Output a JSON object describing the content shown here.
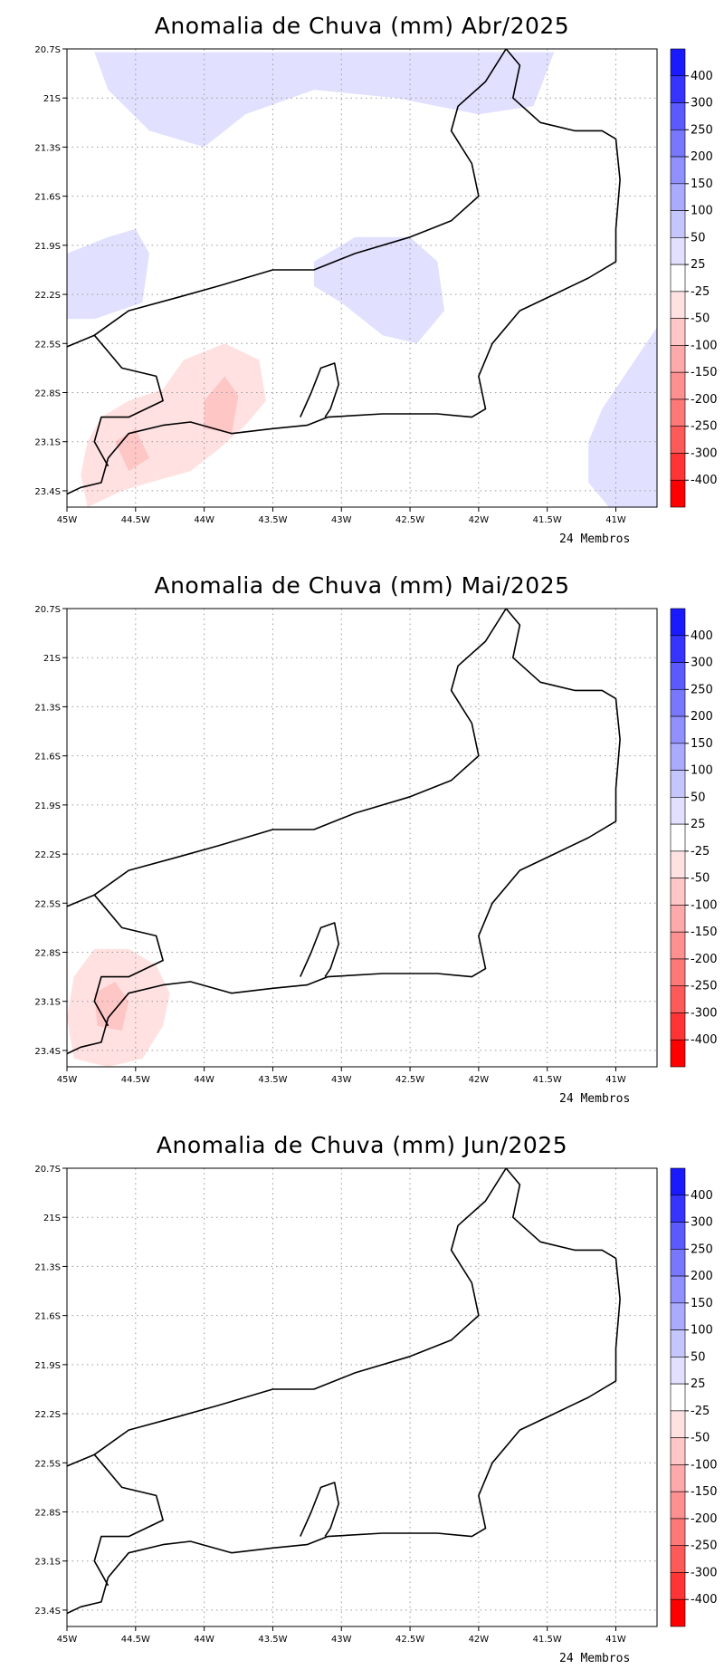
{
  "panels": [
    {
      "title": "Anomalia de Chuva (mm) Abr/2025",
      "footnote": "24 Membros",
      "anomalies": [
        {
          "shape": [
            [
              -44.8,
              -20.72
            ],
            [
              -43.6,
              -20.72
            ],
            [
              -43.4,
              -20.72
            ],
            [
              -42.6,
              -20.72
            ],
            [
              -41.45,
              -20.72
            ],
            [
              -41.6,
              -21.05
            ],
            [
              -42.0,
              -21.1
            ],
            [
              -42.6,
              -21.0
            ],
            [
              -43.2,
              -20.95
            ],
            [
              -43.7,
              -21.1
            ],
            [
              -44.0,
              -21.3
            ],
            [
              -44.4,
              -21.2
            ],
            [
              -44.7,
              -20.95
            ]
          ],
          "level": "25 to 50"
        },
        {
          "shape": [
            [
              -45.0,
              -21.95
            ],
            [
              -44.7,
              -21.85
            ],
            [
              -44.5,
              -21.8
            ],
            [
              -44.4,
              -21.95
            ],
            [
              -44.45,
              -22.25
            ],
            [
              -44.8,
              -22.35
            ],
            [
              -45.0,
              -22.35
            ]
          ],
          "level": "25 to 50"
        },
        {
          "shape": [
            [
              -43.2,
              -22.0
            ],
            [
              -42.9,
              -21.85
            ],
            [
              -42.5,
              -21.85
            ],
            [
              -42.3,
              -22.0
            ],
            [
              -42.25,
              -22.3
            ],
            [
              -42.45,
              -22.5
            ],
            [
              -42.7,
              -22.45
            ],
            [
              -43.0,
              -22.25
            ],
            [
              -43.2,
              -22.15
            ]
          ],
          "level": "25 to 50"
        },
        {
          "shape": [
            [
              -40.7,
              -22.4
            ],
            [
              -40.9,
              -22.65
            ],
            [
              -41.1,
              -22.9
            ],
            [
              -41.2,
              -23.1
            ],
            [
              -41.2,
              -23.35
            ],
            [
              -41.05,
              -23.5
            ],
            [
              -40.7,
              -23.5
            ]
          ],
          "level": "25 to 50"
        },
        {
          "shape": [
            [
              -44.75,
              -22.95
            ],
            [
              -44.55,
              -22.85
            ],
            [
              -44.3,
              -22.78
            ],
            [
              -44.15,
              -22.6
            ],
            [
              -43.85,
              -22.5
            ],
            [
              -43.6,
              -22.6
            ],
            [
              -43.55,
              -22.85
            ],
            [
              -43.7,
              -23.0
            ],
            [
              -43.9,
              -23.15
            ],
            [
              -44.1,
              -23.28
            ],
            [
              -44.4,
              -23.35
            ],
            [
              -44.6,
              -23.4
            ],
            [
              -44.85,
              -23.5
            ],
            [
              -44.9,
              -23.3
            ],
            [
              -44.85,
              -23.1
            ]
          ],
          "level": "-25 to -50"
        },
        {
          "shape": [
            [
              -44.0,
              -22.85
            ],
            [
              -43.85,
              -22.7
            ],
            [
              -43.75,
              -22.82
            ],
            [
              -43.8,
              -23.05
            ],
            [
              -44.0,
              -23.02
            ]
          ],
          "level": "-50 to -100"
        },
        {
          "shape": [
            [
              -44.65,
              -23.1
            ],
            [
              -44.5,
              -23.02
            ],
            [
              -44.4,
              -23.2
            ],
            [
              -44.55,
              -23.28
            ]
          ],
          "level": "-50 to -100"
        }
      ]
    },
    {
      "title": "Anomalia de Chuva (mm) Mai/2025",
      "footnote": "24 Membros",
      "anomalies": [
        {
          "shape": [
            [
              -44.95,
              -22.95
            ],
            [
              -44.8,
              -22.78
            ],
            [
              -44.55,
              -22.78
            ],
            [
              -44.35,
              -22.88
            ],
            [
              -44.25,
              -23.05
            ],
            [
              -44.3,
              -23.25
            ],
            [
              -44.45,
              -23.45
            ],
            [
              -44.7,
              -23.5
            ],
            [
              -44.95,
              -23.45
            ],
            [
              -45.0,
              -23.2
            ]
          ],
          "level": "-25 to -50"
        },
        {
          "shape": [
            [
              -44.8,
              -23.05
            ],
            [
              -44.65,
              -22.98
            ],
            [
              -44.55,
              -23.1
            ],
            [
              -44.6,
              -23.28
            ],
            [
              -44.78,
              -23.25
            ]
          ],
          "level": "-50 to -100"
        }
      ]
    },
    {
      "title": "Anomalia de Chuva (mm) Jun/2025",
      "footnote": "24 Membros",
      "anomalies": []
    }
  ],
  "map": {
    "lon_range": [
      -45.0,
      -40.7
    ],
    "lat_range": [
      -23.5,
      -20.7
    ],
    "lon_ticks": [
      "45W",
      "44.5W",
      "44W",
      "43.5W",
      "43W",
      "42.5W",
      "42W",
      "41.5W",
      "41W"
    ],
    "lon_values": [
      -45.0,
      -44.5,
      -44.0,
      -43.5,
      -43.0,
      -42.5,
      -42.0,
      -41.5,
      -41.0
    ],
    "lat_ticks": [
      "20.7S",
      "21S",
      "21.3S",
      "21.6S",
      "21.9S",
      "22.2S",
      "22.5S",
      "22.8S",
      "23.1S",
      "23.4S"
    ],
    "lat_values": [
      -20.7,
      -21.0,
      -21.3,
      -21.6,
      -21.9,
      -22.2,
      -22.5,
      -22.8,
      -23.1,
      -23.4
    ],
    "grid": "dotted",
    "boundary": [
      [
        -45.0,
        -22.52
      ],
      [
        -44.8,
        -22.45
      ],
      [
        -44.55,
        -22.3
      ],
      [
        -44.2,
        -22.22
      ],
      [
        -43.9,
        -22.15
      ],
      [
        -43.5,
        -22.05
      ],
      [
        -43.2,
        -22.05
      ],
      [
        -42.9,
        -21.95
      ],
      [
        -42.5,
        -21.85
      ],
      [
        -42.2,
        -21.75
      ],
      [
        -42.0,
        -21.6
      ],
      [
        -42.05,
        -21.4
      ],
      [
        -42.2,
        -21.2
      ],
      [
        -42.15,
        -21.05
      ],
      [
        -41.95,
        -20.9
      ],
      [
        -41.8,
        -20.7
      ],
      [
        -41.7,
        -20.8
      ],
      [
        -41.75,
        -21.0
      ],
      [
        -41.55,
        -21.15
      ],
      [
        -41.3,
        -21.2
      ],
      [
        -41.1,
        -21.2
      ],
      [
        -41.0,
        -21.25
      ],
      [
        -40.97,
        -21.5
      ],
      [
        -41.0,
        -21.8
      ],
      [
        -41.0,
        -22.0
      ],
      [
        -41.2,
        -22.1
      ],
      [
        -41.45,
        -22.2
      ],
      [
        -41.7,
        -22.3
      ],
      [
        -41.9,
        -22.5
      ],
      [
        -42.0,
        -22.7
      ],
      [
        -41.95,
        -22.9
      ],
      [
        -42.05,
        -22.95
      ],
      [
        -42.3,
        -22.93
      ],
      [
        -42.7,
        -22.93
      ],
      [
        -43.1,
        -22.95
      ],
      [
        -43.25,
        -23.0
      ],
      [
        -43.5,
        -23.02
      ],
      [
        -43.8,
        -23.05
      ],
      [
        -44.1,
        -22.98
      ],
      [
        -44.3,
        -23.0
      ],
      [
        -44.55,
        -23.05
      ],
      [
        -44.7,
        -23.2
      ],
      [
        -44.75,
        -23.35
      ],
      [
        -44.9,
        -23.38
      ],
      [
        -45.0,
        -23.42
      ]
    ],
    "boundary_west": [
      [
        -44.8,
        -22.45
      ],
      [
        -44.6,
        -22.65
      ],
      [
        -44.35,
        -22.7
      ],
      [
        -44.3,
        -22.85
      ],
      [
        -44.55,
        -22.95
      ],
      [
        -44.75,
        -22.95
      ],
      [
        -44.8,
        -23.1
      ],
      [
        -44.7,
        -23.25
      ]
    ],
    "bay_guanabara": [
      [
        -43.3,
        -22.95
      ],
      [
        -43.22,
        -22.8
      ],
      [
        -43.15,
        -22.65
      ],
      [
        -43.05,
        -22.62
      ],
      [
        -43.02,
        -22.75
      ],
      [
        -43.08,
        -22.9
      ],
      [
        -43.12,
        -22.95
      ]
    ]
  },
  "colorbar": {
    "labels": [
      "400",
      "300",
      "250",
      "200",
      "150",
      "100",
      "50",
      "25",
      "-25",
      "-50",
      "-100",
      "-150",
      "-200",
      "-250",
      "-300",
      "-400"
    ],
    "colors": [
      "#1a1aff",
      "#3535ff",
      "#5a5aff",
      "#7878ff",
      "#9090ff",
      "#aaaaff",
      "#c6c6ff",
      "#e1e1ff",
      "#ffffff",
      "#ffe1e1",
      "#ffc6c6",
      "#ffaaaa",
      "#ff9090",
      "#ff7878",
      "#ff5a5a",
      "#ff3535",
      "#ff0000"
    ]
  }
}
